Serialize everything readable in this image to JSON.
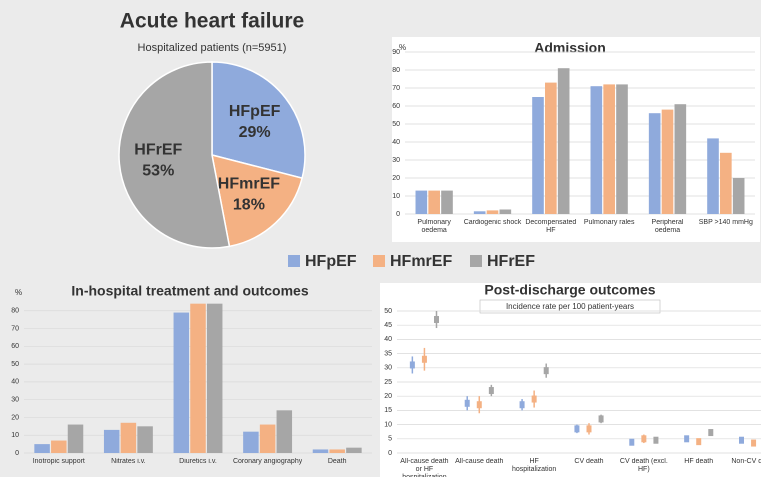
{
  "chart_data": [
    {
      "type": "pie",
      "title": "Acute heart failure",
      "subtitle": "Hospitalized patients (n=5951)",
      "categories": [
        "HFpEF",
        "HFmrEF",
        "HFrEF"
      ],
      "values": [
        29,
        18,
        53
      ],
      "value_labels": [
        "29%",
        "18%",
        "53%"
      ],
      "colors": [
        "#8faadc",
        "#f4b183",
        "#a6a6a6"
      ]
    },
    {
      "type": "bar",
      "title": "Admission",
      "ylabel": "%",
      "categories": [
        "Pulmonary oedema",
        "Cardiogenic shock",
        "Decompensated HF",
        "Pulmonary rales",
        "Peripheral oedema",
        "SBP >140 mmHg"
      ],
      "series": [
        {
          "name": "HFpEF",
          "color": "#8faadc",
          "values": [
            13,
            1.5,
            65,
            71,
            56,
            42
          ]
        },
        {
          "name": "HFmrEF",
          "color": "#f4b183",
          "values": [
            13,
            2,
            73,
            72,
            58,
            34
          ]
        },
        {
          "name": "HFrEF",
          "color": "#a6a6a6",
          "values": [
            13,
            2.5,
            81,
            72,
            61,
            20
          ]
        }
      ],
      "ylim": [
        0,
        90
      ],
      "yticks": [
        0,
        10,
        20,
        30,
        40,
        50,
        60,
        70,
        80,
        90
      ],
      "grid": true
    },
    {
      "type": "bar",
      "title": "In-hospital treatment and outcomes",
      "ylabel": "%",
      "categories": [
        "Inotropic support",
        "Nitrates i.v.",
        "Diuretics i.v.",
        "Coronary angiography",
        "Death"
      ],
      "series": [
        {
          "name": "HFpEF",
          "color": "#8faadc",
          "values": [
            5,
            13,
            79,
            12,
            2
          ]
        },
        {
          "name": "HFmrEF",
          "color": "#f4b183",
          "values": [
            7,
            17,
            84,
            16,
            2
          ]
        },
        {
          "name": "HFrEF",
          "color": "#a6a6a6",
          "values": [
            16,
            15,
            84,
            24,
            3
          ]
        }
      ],
      "ylim": [
        0,
        90
      ],
      "yticks": [
        0,
        10,
        20,
        30,
        40,
        50,
        60,
        70,
        80
      ],
      "grid": true
    },
    {
      "type": "errorbar",
      "title": "Post-discharge outcomes",
      "subtitle": "Incidence rate per 100 patient-years",
      "categories": [
        "All-cause death or HF hospitalization",
        "All-cause death",
        "HF hospitalization",
        "CV death",
        "CV death (excl. HF)",
        "HF death",
        "Non-CV death"
      ],
      "series": [
        {
          "name": "HFpEF",
          "color": "#8faadc",
          "values": [
            31,
            17.5,
            17,
            8.5,
            3.8,
            5,
            4.5
          ],
          "errors": [
            3,
            2.5,
            2,
            1.5,
            1,
            1,
            1
          ]
        },
        {
          "name": "HFmrEF",
          "color": "#f4b183",
          "values": [
            33,
            17,
            19,
            8.5,
            5,
            4,
            3.5
          ],
          "errors": [
            4,
            3,
            3,
            2,
            1.5,
            1,
            1
          ]
        },
        {
          "name": "HFrEF",
          "color": "#a6a6a6",
          "values": [
            47,
            22,
            29,
            12,
            4.5,
            7.2,
            2.5
          ],
          "errors": [
            3,
            2,
            2.5,
            1.5,
            1,
            1,
            0.7
          ]
        }
      ],
      "ylim": [
        0,
        50
      ],
      "yticks": [
        0,
        5,
        10,
        15,
        20,
        25,
        30,
        35,
        40,
        45,
        50
      ],
      "grid": true
    }
  ]
}
